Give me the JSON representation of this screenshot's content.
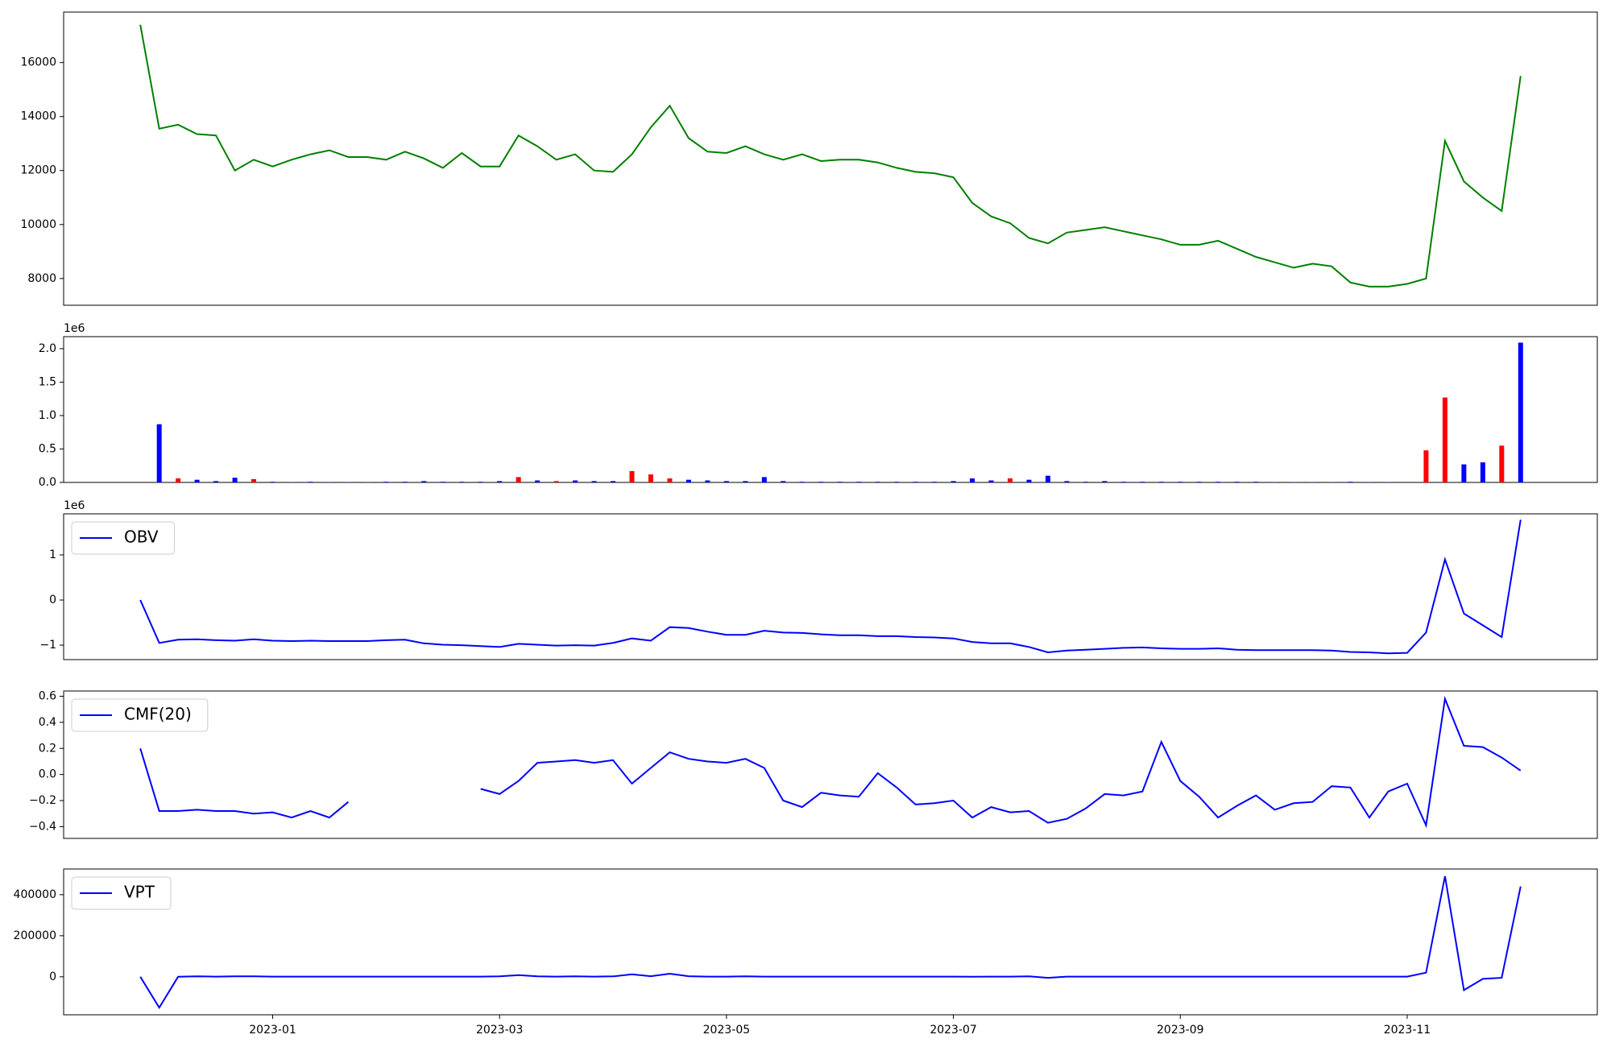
{
  "chart_data": [
    {
      "type": "line",
      "color": "#008000",
      "values": [
        17400,
        13550,
        13700,
        13350,
        13300,
        12000,
        12400,
        12150,
        12400,
        12600,
        12750,
        12500,
        12500,
        12400,
        12700,
        12450,
        12100,
        12650,
        12150,
        12150,
        13300,
        12900,
        12400,
        12600,
        12000,
        11950,
        12600,
        13600,
        14400,
        13200,
        12700,
        12650,
        12900,
        12600,
        12400,
        12600,
        12350,
        12400,
        12400,
        12300,
        12100,
        11950,
        11900,
        11750,
        10800,
        10300,
        10050,
        9500,
        9300,
        9700,
        9800,
        9900,
        9750,
        9600,
        9450,
        9250,
        9250,
        9400,
        9100,
        8800,
        8600,
        8400,
        8550,
        8450,
        7850,
        7700,
        7700,
        7800,
        8000,
        13100,
        11600,
        11000,
        10500,
        15500
      ],
      "ylim": [
        7010,
        17870
      ],
      "yticks": [
        8000,
        10000,
        12000,
        14000,
        16000
      ]
    },
    {
      "type": "bar",
      "offset_label": "1e6",
      "values": [
        0,
        870000,
        60000,
        40000,
        20000,
        70000,
        50000,
        10000,
        5000,
        10000,
        5000,
        5000,
        5000,
        10000,
        10000,
        20000,
        10000,
        10000,
        10000,
        20000,
        80000,
        30000,
        20000,
        30000,
        20000,
        20000,
        170000,
        120000,
        60000,
        40000,
        30000,
        20000,
        20000,
        80000,
        20000,
        10000,
        10000,
        10000,
        10000,
        10000,
        10000,
        10000,
        10000,
        20000,
        60000,
        30000,
        60000,
        40000,
        100000,
        20000,
        10000,
        20000,
        10000,
        10000,
        10000,
        10000,
        10000,
        10000,
        10000,
        10000,
        5000,
        5000,
        5000,
        5000,
        10000,
        5000,
        5000,
        0,
        480000,
        1270000,
        270000,
        300000,
        550000,
        2090000
      ],
      "colors": [
        "#0000ff",
        "#0000ff",
        "#ff0000",
        "#0000ff",
        "#0000ff",
        "#0000ff",
        "#ff0000",
        "#0000ff",
        "#0000ff",
        "#0000ff",
        "#0000ff",
        "#0000ff",
        "#0000ff",
        "#0000ff",
        "#0000ff",
        "#0000ff",
        "#0000ff",
        "#0000ff",
        "#0000ff",
        "#0000ff",
        "#ff0000",
        "#0000ff",
        "#ff0000",
        "#0000ff",
        "#0000ff",
        "#0000ff",
        "#ff0000",
        "#ff0000",
        "#ff0000",
        "#0000ff",
        "#0000ff",
        "#0000ff",
        "#0000ff",
        "#0000ff",
        "#0000ff",
        "#0000ff",
        "#0000ff",
        "#0000ff",
        "#0000ff",
        "#0000ff",
        "#0000ff",
        "#0000ff",
        "#0000ff",
        "#0000ff",
        "#0000ff",
        "#0000ff",
        "#ff0000",
        "#0000ff",
        "#0000ff",
        "#0000ff",
        "#0000ff",
        "#0000ff",
        "#0000ff",
        "#0000ff",
        "#0000ff",
        "#0000ff",
        "#0000ff",
        "#0000ff",
        "#0000ff",
        "#0000ff",
        "#0000ff",
        "#0000ff",
        "#0000ff",
        "#0000ff",
        "#0000ff",
        "#0000ff",
        "#0000ff",
        "#0000ff",
        "#ff0000",
        "#ff0000",
        "#0000ff",
        "#0000ff",
        "#ff0000",
        "#0000ff"
      ],
      "ylim": [
        0,
        2180000
      ],
      "yticks": [
        {
          "value": 0,
          "label": "0.0"
        },
        {
          "value": 500000,
          "label": "0.5"
        },
        {
          "value": 1000000,
          "label": "1.0"
        },
        {
          "value": 1500000,
          "label": "1.5"
        },
        {
          "value": 2000000,
          "label": "2.0"
        }
      ]
    },
    {
      "type": "line",
      "offset_label": "1e6",
      "legend": "upper left",
      "series": [
        {
          "name": "OBV",
          "color": "#0000ff",
          "values": [
            0,
            -950000,
            -880000,
            -870000,
            -890000,
            -900000,
            -870000,
            -900000,
            -910000,
            -900000,
            -910000,
            -910000,
            -910000,
            -890000,
            -880000,
            -960000,
            -990000,
            -1000000,
            -1020000,
            -1040000,
            -970000,
            -990000,
            -1010000,
            -1000000,
            -1010000,
            -950000,
            -850000,
            -900000,
            -600000,
            -620000,
            -700000,
            -770000,
            -770000,
            -680000,
            -720000,
            -730000,
            -760000,
            -780000,
            -780000,
            -800000,
            -800000,
            -820000,
            -830000,
            -850000,
            -930000,
            -960000,
            -960000,
            -1040000,
            -1160000,
            -1120000,
            -1100000,
            -1080000,
            -1060000,
            -1050000,
            -1070000,
            -1080000,
            -1080000,
            -1070000,
            -1100000,
            -1110000,
            -1110000,
            -1110000,
            -1110000,
            -1120000,
            -1150000,
            -1160000,
            -1180000,
            -1170000,
            -720000,
            900000,
            -300000,
            -560000,
            -820000,
            1780000
          ]
        }
      ],
      "ylim": [
        -1320000,
        1910000
      ],
      "yticks": [
        {
          "value": -1000000,
          "label": "−1"
        },
        {
          "value": 0,
          "label": "0"
        },
        {
          "value": 1000000,
          "label": "1"
        }
      ]
    },
    {
      "type": "line",
      "legend": "upper left",
      "series": [
        {
          "name": "CMF(20)",
          "color": "#0000ff",
          "values": [
            0.2,
            -0.28,
            -0.28,
            -0.27,
            -0.28,
            -0.28,
            -0.3,
            -0.29,
            -0.33,
            -0.28,
            -0.33,
            -0.21,
            null,
            null,
            null,
            null,
            null,
            null,
            -0.11,
            -0.15,
            -0.05,
            0.09,
            0.1,
            0.11,
            0.09,
            0.11,
            -0.07,
            0.05,
            0.17,
            0.12,
            0.1,
            0.09,
            0.12,
            0.05,
            -0.2,
            -0.25,
            -0.14,
            -0.16,
            -0.17,
            0.01,
            -0.1,
            -0.23,
            -0.22,
            -0.2,
            -0.33,
            -0.25,
            -0.29,
            -0.28,
            -0.37,
            -0.34,
            -0.26,
            -0.15,
            -0.16,
            -0.13,
            0.25,
            -0.05,
            -0.17,
            -0.33,
            -0.24,
            -0.16,
            -0.27,
            -0.22,
            -0.21,
            -0.09,
            -0.1,
            -0.33,
            -0.13,
            -0.07,
            -0.39,
            0.58,
            0.22,
            0.21,
            0.13,
            0.03
          ]
        }
      ],
      "ylim": [
        -0.49,
        0.64
      ],
      "yticks": [
        {
          "value": -0.4,
          "label": "−0.4"
        },
        {
          "value": -0.2,
          "label": "−0.2"
        },
        {
          "value": 0,
          "label": "0.0"
        },
        0.2,
        0.4,
        0.6
      ]
    },
    {
      "type": "line",
      "legend": "upper left",
      "categories": [
        null,
        null,
        null,
        null,
        null,
        null,
        null,
        "2023-01",
        null,
        null,
        null,
        null,
        null,
        null,
        null,
        null,
        null,
        null,
        null,
        "2023-03",
        null,
        null,
        null,
        null,
        null,
        null,
        null,
        null,
        null,
        null,
        null,
        "2023-05",
        null,
        null,
        null,
        null,
        null,
        null,
        null,
        null,
        null,
        null,
        null,
        "2023-07",
        null,
        null,
        null,
        null,
        null,
        null,
        null,
        null,
        null,
        null,
        null,
        "2023-09",
        null,
        null,
        null,
        null,
        null,
        null,
        null,
        null,
        null,
        null,
        null,
        "2023-11",
        null,
        null,
        null,
        null,
        null,
        null
      ],
      "series": [
        {
          "name": "VPT",
          "color": "#0000ff",
          "values": [
            0,
            -150000,
            0,
            2000,
            1000,
            2000,
            2000,
            1000,
            1000,
            1000,
            1000,
            1000,
            1000,
            1000,
            1000,
            1000,
            1000,
            1000,
            1000,
            2000,
            8000,
            2000,
            1000,
            2000,
            1000,
            2000,
            12000,
            3000,
            15000,
            3000,
            1000,
            1000,
            2000,
            1000,
            1000,
            1000,
            1000,
            1000,
            1000,
            1000,
            1000,
            1000,
            1000,
            1000,
            0,
            1000,
            1000,
            2000,
            -5000,
            1000,
            1000,
            1000,
            1000,
            1000,
            1000,
            1000,
            1000,
            1000,
            1000,
            1000,
            1000,
            1000,
            1000,
            1000,
            1000,
            1000,
            1000,
            1000,
            20000,
            490000,
            -65000,
            -10000,
            -5000,
            440000
          ]
        }
      ],
      "ylim": [
        -185000,
        525000
      ],
      "yticks": [
        0,
        200000,
        400000
      ]
    }
  ]
}
